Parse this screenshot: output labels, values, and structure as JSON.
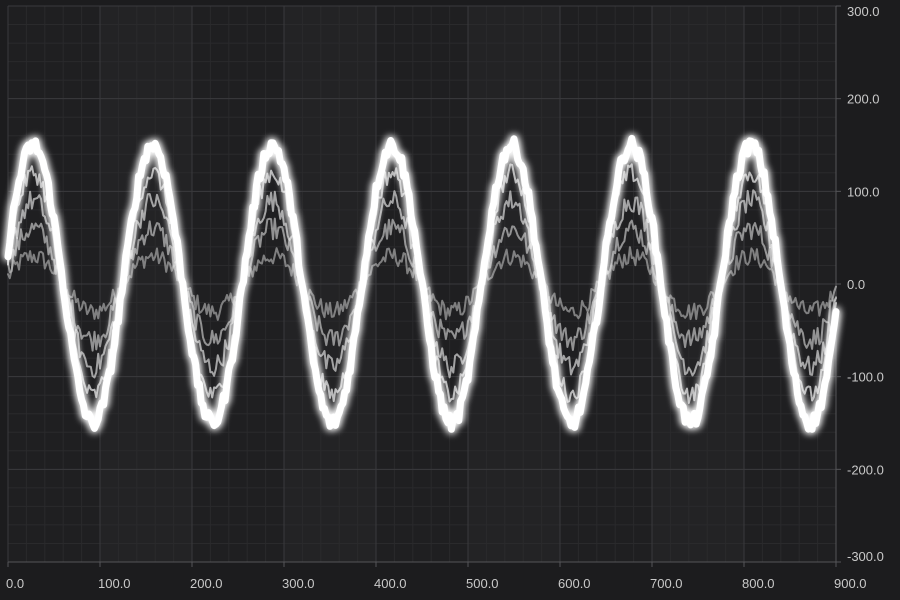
{
  "chart_data": {
    "type": "line",
    "title": "",
    "xlabel": "",
    "ylabel": "",
    "xlim": [
      0,
      900
    ],
    "ylim": [
      -300,
      300
    ],
    "x_ticks": [
      0,
      100,
      200,
      300,
      400,
      500,
      600,
      700,
      800,
      900
    ],
    "x_tick_labels": [
      "0.0",
      "100.0",
      "200.0",
      "300.0",
      "400.0",
      "500.0",
      "600.0",
      "700.0",
      "800.0",
      "900.0"
    ],
    "y_ticks": [
      300,
      200,
      100,
      0,
      -100,
      -200,
      -300
    ],
    "y_tick_labels": [
      "300.0",
      "200.0",
      "100.0",
      "0.0",
      "-100.0",
      "-200.0",
      "-300.0"
    ],
    "grid": true,
    "legend": "none",
    "wave": {
      "period": 130,
      "phase_offset": 0,
      "sample_step": 2
    },
    "series": [
      {
        "amplitude": 150,
        "noise": 8,
        "color": "#ffffff"
      },
      {
        "amplitude": 120,
        "noise": 10,
        "color": "#e6e6e6"
      },
      {
        "amplitude": 90,
        "noise": 12,
        "color": "#cfcfcf"
      },
      {
        "amplitude": 60,
        "noise": 12,
        "color": "#b8b8b8"
      },
      {
        "amplitude": 30,
        "noise": 10,
        "color": "#a0a0a0"
      }
    ]
  },
  "colors": {
    "background": "#1c1c1e",
    "plot_background": "#1f1f21",
    "grid_major": "#3a3a3d",
    "grid_minor": "#2a2a2c",
    "tick_label": "#c9c9c9"
  }
}
